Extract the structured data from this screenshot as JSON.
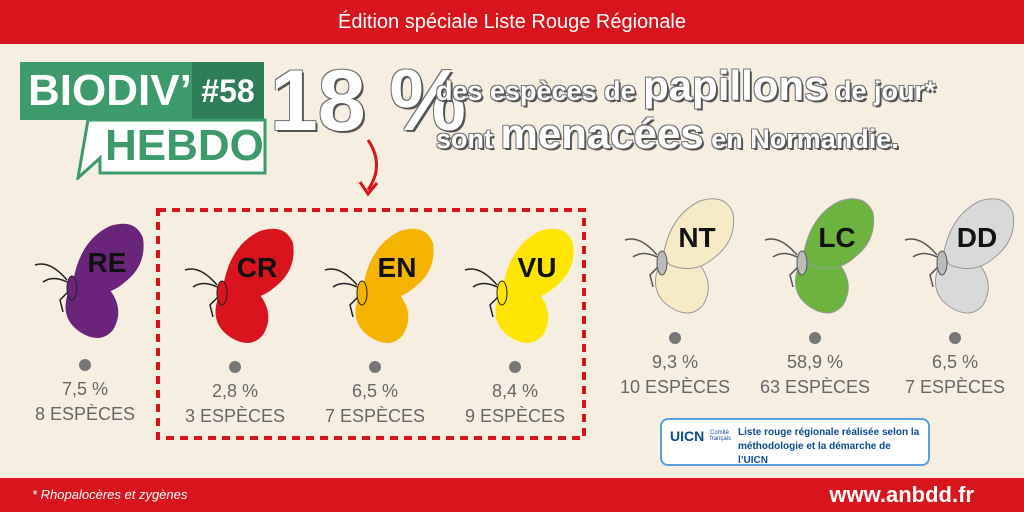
{
  "header": {
    "banner": "Édition spéciale Liste Rouge Régionale"
  },
  "logo": {
    "name": "BIODIV’",
    "issue": "#58",
    "sub": "HEBDO"
  },
  "headline": {
    "figure": "18 %",
    "line1": [
      "des espèces de",
      "papillons",
      "de jour*"
    ],
    "line2": [
      "sont",
      "menacées",
      "en Normandie."
    ]
  },
  "categories": [
    {
      "code": "RE",
      "percent": "7,5 %",
      "count": "8 ESPÈCES",
      "color": "#6a2479"
    },
    {
      "code": "CR",
      "percent": "2,8 %",
      "count": "3 ESPÈCES",
      "color": "#d8141c"
    },
    {
      "code": "EN",
      "percent": "6,5 %",
      "count": "7 ESPÈCES",
      "color": "#f5b400"
    },
    {
      "code": "VU",
      "percent": "8,4 %",
      "count": "9 ESPÈCES",
      "color": "#ffe500"
    },
    {
      "code": "NT",
      "percent": "9,3 %",
      "count": "10 ESPÈCES",
      "color": "#f7ebc6"
    },
    {
      "code": "LC",
      "percent": "58,9 %",
      "count": "63 ESPÈCES",
      "color": "#6cb33f"
    },
    {
      "code": "DD",
      "percent": "6,5 %",
      "count": "7 ESPÈCES",
      "color": "#d9d9d9"
    }
  ],
  "badge": {
    "logo": "UICN",
    "logo_sub": "Comité français",
    "text": "Liste rouge régionale réalisée selon la méthodologie et la démarche de l’UICN"
  },
  "footer": {
    "note": "* Rhopalocères et zygènes",
    "url": "www.anbdd.fr"
  }
}
